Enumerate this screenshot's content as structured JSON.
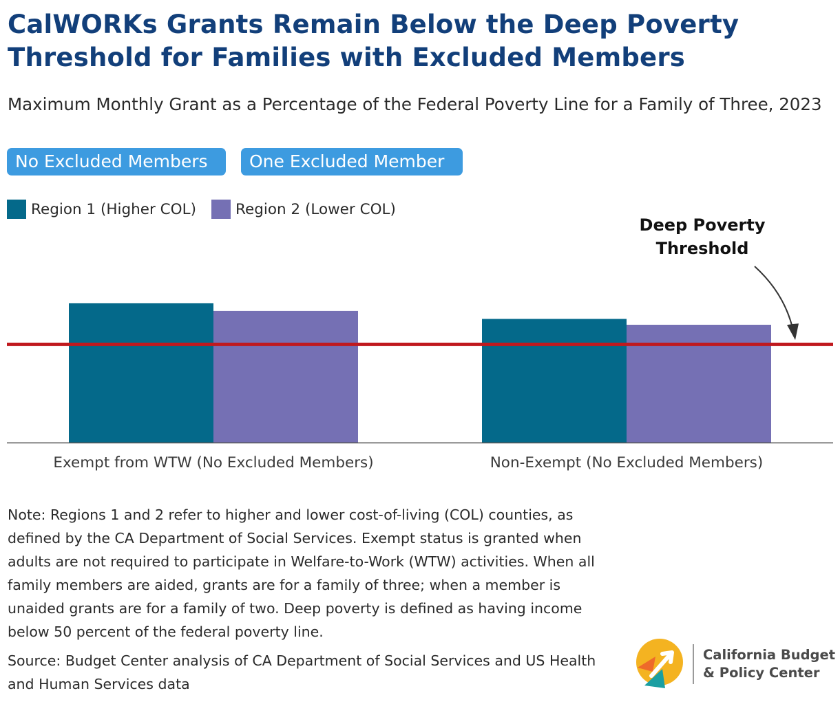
{
  "title_lines": [
    "CalWORKs Grants Remain Below the Deep Poverty",
    "Threshold for Families with Excluded Members"
  ],
  "subtitle": "Maximum Monthly Grant as a Percentage of the Federal Poverty Line for a Family of Three, 2023",
  "toggles": [
    {
      "label": "No Excluded Members",
      "selected": true
    },
    {
      "label": "One Excluded Member",
      "selected": false
    }
  ],
  "colors": {
    "title": "#123f7a",
    "region1": "#04698a",
    "region2": "#7570b4",
    "threshold": "#c0191e",
    "toggle": "#3d9be0"
  },
  "chart_data": {
    "type": "bar",
    "categories": [
      "Exempt from WTW (No Excluded Members)",
      "Non-Exempt (No Excluded Members)"
    ],
    "series": [
      {
        "name": "Region 1 (Higher COL)",
        "values": [
          71,
          63
        ]
      },
      {
        "name": "Region 2 (Lower COL)",
        "values": [
          67,
          60
        ]
      }
    ],
    "reference_line": {
      "value": 50,
      "label_lines": [
        "Deep Poverty",
        "Threshold"
      ]
    },
    "ylim": [
      0,
      88
    ],
    "legend_placement": "top-left",
    "grid": false
  },
  "note": "Note: Regions 1 and 2 refer to higher and lower cost-of-living (COL) counties, as defined by the CA Department of Social Services. Exempt status is granted when adults are not required to participate in Welfare-to-Work (WTW) activities. When all family members are aided, grants are for a family of three; when a member is unaided grants are for a family of two. Deep poverty is defined as having income below 50 percent of the federal poverty line.",
  "source": "Source: Budget Center analysis of CA Department of Social Services and US Health and Human Services data",
  "logo": {
    "line1": "California Budget",
    "line2": "& Policy Center"
  }
}
